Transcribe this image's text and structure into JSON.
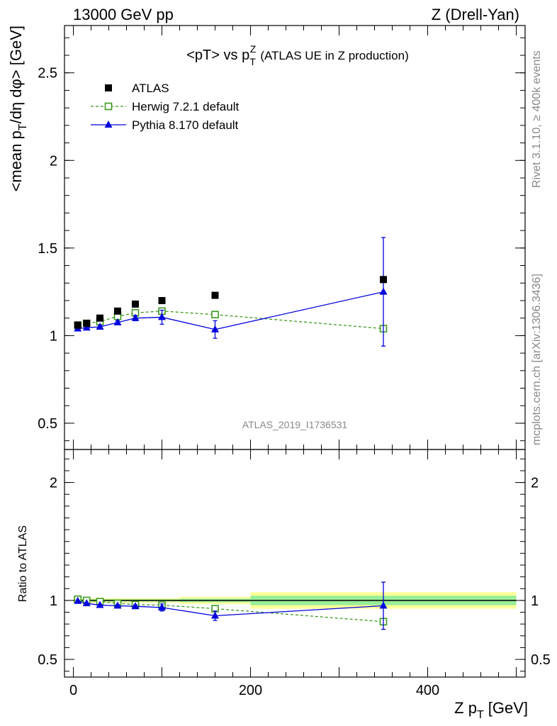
{
  "header": {
    "left": "13000 GeV pp",
    "right": "Z (Drell-Yan)"
  },
  "side_labels": {
    "rivet": "Rivet 3.1.10, ≥ 400k events",
    "mcplots": "mcplots.cern.ch [arXiv:1306.3436]"
  },
  "analysis_id": "ATLAS_2019_I1736531",
  "chart_data": [
    {
      "type": "scatter",
      "title": "<pT> vs pTZ (ATLAS UE in Z production)",
      "title_parts": {
        "main": "<pT> vs p",
        "sup": "Z",
        "sub": "T",
        "suffix": "(ATLAS UE in Z production)"
      },
      "xlabel": "Z pT [GeV]",
      "ylabel": "<mean pT/dη dφ> [GeV]",
      "ylabel_parts": {
        "pre": "<mean p",
        "sub": "T",
        "post": "/dη dφ> [GeV]"
      },
      "xlim": [
        -10,
        510
      ],
      "ylim": [
        0.35,
        2.77
      ],
      "yticks": [
        0.5,
        1,
        1.5,
        2,
        2.5
      ],
      "ytick_labels": [
        "0.5",
        "1",
        "1.5",
        "2",
        "2.5"
      ],
      "legend_position": "top-left",
      "series": [
        {
          "name": "ATLAS",
          "color": "#000000",
          "marker": "filled-square",
          "x": [
            5,
            15,
            30,
            50,
            70,
            100,
            160,
            350
          ],
          "y": [
            1.06,
            1.07,
            1.1,
            1.14,
            1.18,
            1.2,
            1.23,
            1.32
          ]
        },
        {
          "name": "Herwig 7.2.1 default",
          "color": "#3c9a1e",
          "marker": "open-square",
          "line": "dashed",
          "x": [
            5,
            15,
            30,
            50,
            70,
            100,
            160,
            350
          ],
          "y": [
            1.06,
            1.07,
            1.08,
            1.11,
            1.13,
            1.14,
            1.12,
            1.04
          ]
        },
        {
          "name": "Pythia 8.170 default",
          "color": "#0000dd",
          "marker": "filled-triangle",
          "line": "solid",
          "x": [
            5,
            15,
            30,
            50,
            70,
            100,
            160,
            350
          ],
          "y": [
            1.04,
            1.045,
            1.05,
            1.075,
            1.1,
            1.105,
            1.035,
            1.25
          ],
          "yerr": [
            0.005,
            0.005,
            0.008,
            0.01,
            0.015,
            0.04,
            0.05,
            0.31
          ]
        }
      ]
    },
    {
      "type": "scatter",
      "title": "",
      "xlabel": "Z pT [GeV]",
      "xlabel_parts": {
        "pre": "Z p",
        "sub": "T",
        "post": "[GeV]"
      },
      "ylabel": "Ratio to ATLAS",
      "xlim": [
        -10,
        510
      ],
      "ylim": [
        0.35,
        2.28
      ],
      "xticks": [
        0,
        200,
        400
      ],
      "xtick_labels": [
        "0",
        "200",
        "400"
      ],
      "yticks": [
        0.5,
        1,
        2
      ],
      "ytick_labels": [
        "0.5",
        "1",
        "2"
      ],
      "bands": [
        {
          "x": [
            0,
            120
          ],
          "inner": [
            0.99,
            1.01
          ],
          "outer": [
            0.98,
            1.02
          ]
        },
        {
          "x": [
            120,
            200
          ],
          "inner": [
            0.985,
            1.015
          ],
          "outer": [
            0.97,
            1.03
          ]
        },
        {
          "x": [
            200,
            500
          ],
          "inner": [
            0.96,
            1.04
          ],
          "outer": [
            0.93,
            1.07
          ]
        }
      ],
      "series": [
        {
          "name": "Herwig 7.2.1 default",
          "color": "#3c9a1e",
          "marker": "open-square",
          "line": "dashed",
          "x": [
            5,
            15,
            30,
            50,
            70,
            100,
            160,
            350
          ],
          "y": [
            1.01,
            1.0,
            0.99,
            0.975,
            0.965,
            0.96,
            0.93,
            0.82
          ]
        },
        {
          "name": "Pythia 8.170 default",
          "color": "#0000dd",
          "marker": "filled-triangle",
          "line": "solid",
          "x": [
            5,
            15,
            30,
            50,
            70,
            100,
            160,
            350
          ],
          "y": [
            0.995,
            0.975,
            0.96,
            0.955,
            0.95,
            0.94,
            0.87,
            0.955
          ],
          "yerr": [
            0.005,
            0.005,
            0.008,
            0.01,
            0.012,
            0.03,
            0.04,
            0.2
          ]
        }
      ]
    }
  ]
}
